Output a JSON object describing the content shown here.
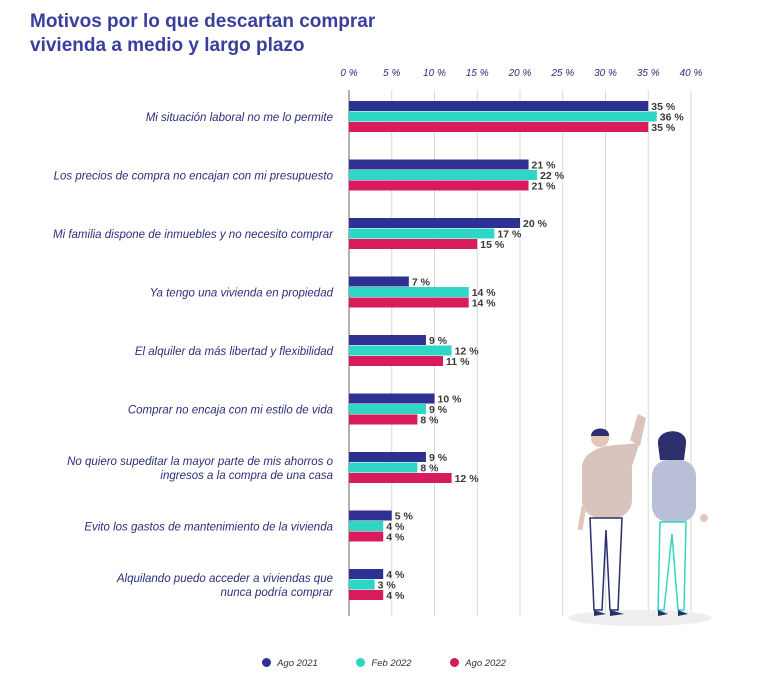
{
  "title": "Motivos por lo que descartan comprar vivienda a medio y largo plazo",
  "colors": {
    "Ago 2021": "#2e3192",
    "Feb 2022": "#2ed6c6",
    "Ago 2022": "#d81b5c"
  },
  "chart_data": {
    "type": "bar",
    "orientation": "horizontal",
    "xlim": [
      0,
      40
    ],
    "x_ticks": [
      "0 %",
      "5 %",
      "10 %",
      "15 %",
      "20 %",
      "25 %",
      "30 %",
      "35 %",
      "40 %"
    ],
    "grid": true,
    "legend_position": "bottom",
    "categories": [
      [
        "Mi situación laboral no me lo permite"
      ],
      [
        "Los precios de compra no encajan con mi presupuesto"
      ],
      [
        "Mi familia dispone de inmuebles y no necesito comprar"
      ],
      [
        "Ya  tengo una vivienda en propiedad"
      ],
      [
        "El alquiler da más libertad y flexibilidad"
      ],
      [
        "Comprar no encaja con mi estilo de vida"
      ],
      [
        "No quiero supeditar la mayor parte de mis ahorros o",
        "ingresos a la compra de una casa"
      ],
      [
        "Evito los gastos de mantenimiento de la vivienda"
      ],
      [
        "Alquilando puedo acceder a viviendas que",
        "nunca podría comprar"
      ]
    ],
    "series": [
      {
        "name": "Ago 2021",
        "values": [
          35,
          21,
          20,
          7,
          9,
          10,
          9,
          5,
          4
        ],
        "labels": [
          "35 %",
          "21 %",
          "20 %",
          "7 %",
          "9 %",
          "10 %",
          "9 %",
          "5 %",
          "4 %"
        ]
      },
      {
        "name": "Feb 2022",
        "values": [
          36,
          22,
          17,
          14,
          12,
          9,
          8,
          4,
          3
        ],
        "labels": [
          "36 %",
          "22 %",
          "17 %",
          "14 %",
          "12 %",
          "9 %",
          "8 %",
          "4 %",
          "3 %"
        ]
      },
      {
        "name": "Ago 2022",
        "values": [
          35,
          21,
          15,
          14,
          11,
          8,
          12,
          4,
          4
        ],
        "labels": [
          "35 %",
          "21 %",
          "15 %",
          "14 %",
          "11 %",
          "8 %",
          "12 %",
          "4 %",
          "4 %"
        ]
      }
    ]
  }
}
